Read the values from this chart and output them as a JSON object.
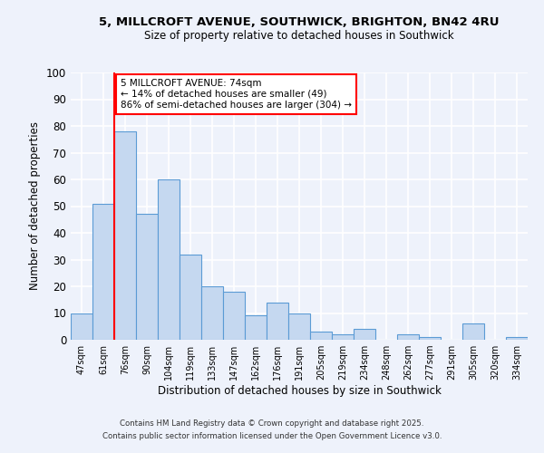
{
  "title_line1": "5, MILLCROFT AVENUE, SOUTHWICK, BRIGHTON, BN42 4RU",
  "title_line2": "Size of property relative to detached houses in Southwick",
  "xlabel": "Distribution of detached houses by size in Southwick",
  "ylabel": "Number of detached properties",
  "categories": [
    "47sqm",
    "61sqm",
    "76sqm",
    "90sqm",
    "104sqm",
    "119sqm",
    "133sqm",
    "147sqm",
    "162sqm",
    "176sqm",
    "191sqm",
    "205sqm",
    "219sqm",
    "234sqm",
    "248sqm",
    "262sqm",
    "277sqm",
    "291sqm",
    "305sqm",
    "320sqm",
    "334sqm"
  ],
  "values": [
    10,
    51,
    78,
    47,
    60,
    32,
    20,
    18,
    9,
    14,
    10,
    3,
    2,
    4,
    0,
    2,
    1,
    0,
    6,
    0,
    1
  ],
  "bar_color": "#c5d8f0",
  "bar_edge_color": "#5b9bd5",
  "bar_edge_width": 0.8,
  "ylim": [
    0,
    100
  ],
  "yticks": [
    0,
    10,
    20,
    30,
    40,
    50,
    60,
    70,
    80,
    90,
    100
  ],
  "redline_index": 2,
  "annotation_line1": "5 MILLCROFT AVENUE: 74sqm",
  "annotation_line2": "← 14% of detached houses are smaller (49)",
  "annotation_line3": "86% of semi-detached houses are larger (304) →",
  "annotation_box_color": "white",
  "annotation_box_edge_color": "red",
  "background_color": "#eef2fb",
  "plot_bg_color": "#eef2fb",
  "grid_color": "white",
  "footer_line1": "Contains HM Land Registry data © Crown copyright and database right 2025.",
  "footer_line2": "Contains public sector information licensed under the Open Government Licence v3.0."
}
